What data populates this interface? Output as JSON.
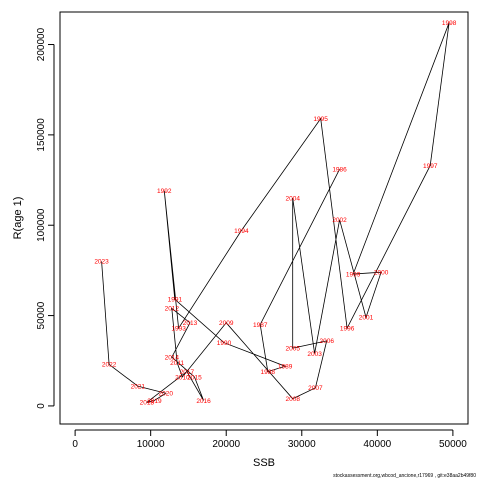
{
  "chart_data": {
    "type": "line",
    "xlabel": "SSB",
    "ylabel": "R(age 1)",
    "xlim": [
      -2000,
      52000
    ],
    "ylim": [
      -10000,
      218000
    ],
    "xticks": [
      0,
      10000,
      20000,
      30000,
      40000,
      50000
    ],
    "yticks": [
      0,
      50000,
      100000,
      150000,
      200000
    ],
    "grid": false,
    "series": [
      {
        "points": [
          {
            "label": "1986",
            "x": 35000,
            "y": 131000
          },
          {
            "label": "1987",
            "x": 24500,
            "y": 45000
          },
          {
            "label": "1988",
            "x": 25500,
            "y": 19000
          },
          {
            "label": "1989",
            "x": 27800,
            "y": 22000
          },
          {
            "label": "1990",
            "x": 19700,
            "y": 35000
          },
          {
            "label": "1991",
            "x": 13200,
            "y": 59000
          },
          {
            "label": "1992",
            "x": 11800,
            "y": 119000
          },
          {
            "label": "1993",
            "x": 13700,
            "y": 43000
          },
          {
            "label": "1994",
            "x": 22000,
            "y": 97000
          },
          {
            "label": "1995",
            "x": 32500,
            "y": 159000
          },
          {
            "label": "1996",
            "x": 36000,
            "y": 43000
          },
          {
            "label": "1997",
            "x": 47000,
            "y": 133000
          },
          {
            "label": "1998",
            "x": 49500,
            "y": 212000
          },
          {
            "label": "1999",
            "x": 36800,
            "y": 73000
          },
          {
            "label": "2000",
            "x": 40500,
            "y": 74000
          },
          {
            "label": "2001",
            "x": 38500,
            "y": 49000
          },
          {
            "label": "2002",
            "x": 35000,
            "y": 103000
          },
          {
            "label": "2003",
            "x": 31700,
            "y": 29000
          },
          {
            "label": "2004",
            "x": 28800,
            "y": 115000
          },
          {
            "label": "2005",
            "x": 28800,
            "y": 32000
          },
          {
            "label": "2006",
            "x": 33300,
            "y": 36000
          },
          {
            "label": "2007",
            "x": 31800,
            "y": 10000
          },
          {
            "label": "2008",
            "x": 28800,
            "y": 4000
          },
          {
            "label": "2009",
            "x": 20000,
            "y": 46000
          },
          {
            "label": "2010",
            "x": 14200,
            "y": 16000
          },
          {
            "label": "2011",
            "x": 13500,
            "y": 24000
          },
          {
            "label": "2012",
            "x": 12800,
            "y": 54000
          },
          {
            "label": "2013",
            "x": 15200,
            "y": 46000
          },
          {
            "label": "2014",
            "x": 12800,
            "y": 27000
          },
          {
            "label": "2015",
            "x": 15800,
            "y": 16000
          },
          {
            "label": "2016",
            "x": 17000,
            "y": 3000
          },
          {
            "label": "2017",
            "x": 14800,
            "y": 19000
          },
          {
            "label": "2018",
            "x": 9500,
            "y": 2000
          },
          {
            "label": "2019",
            "x": 10500,
            "y": 3000
          },
          {
            "label": "2020",
            "x": 12000,
            "y": 7000
          },
          {
            "label": "2021",
            "x": 8300,
            "y": 11000
          },
          {
            "label": "2022",
            "x": 4500,
            "y": 23000
          },
          {
            "label": "2023",
            "x": 3500,
            "y": 80000
          }
        ]
      }
    ]
  },
  "footer_text": "stockassessment.org,wbcod_ancione,r17969 , git:e38aa2b49f80"
}
